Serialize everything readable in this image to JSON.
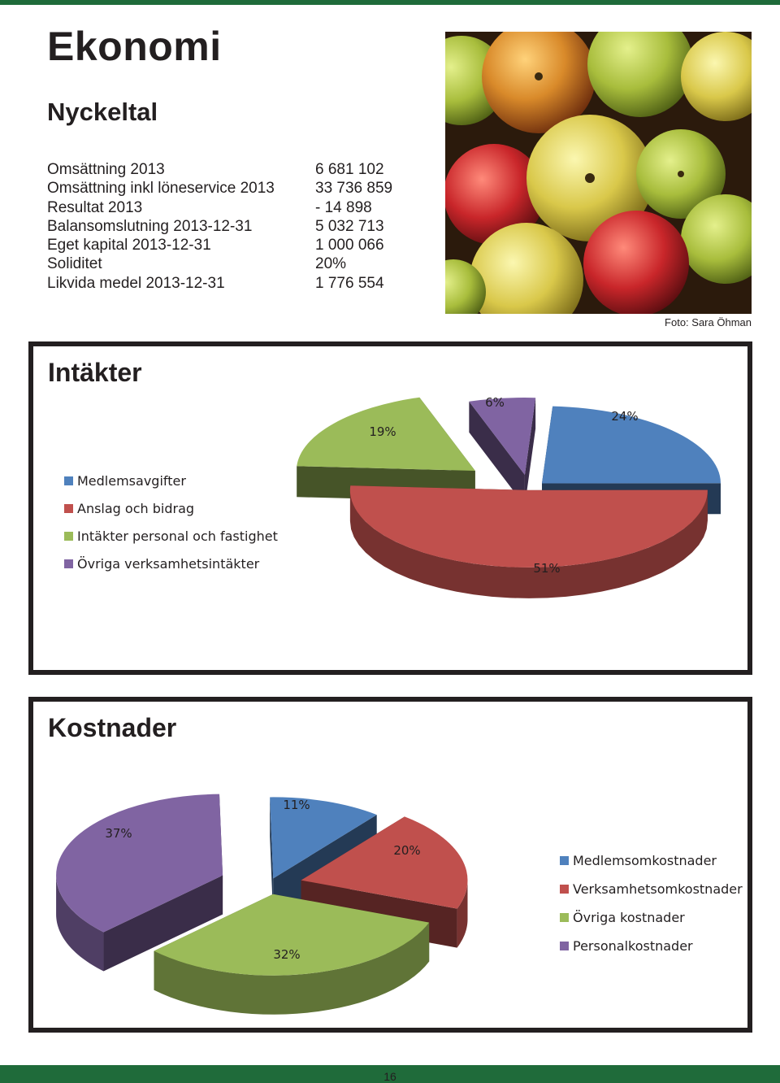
{
  "page": {
    "title": "Ekonomi",
    "subtitle": "Nyckeltal",
    "page_number": "16"
  },
  "photo": {
    "credit": "Foto: Sara Öhman",
    "subject": "apples"
  },
  "key_figures": [
    {
      "label": "Omsättning 2013",
      "value": "6 681 102"
    },
    {
      "label": "Omsättning inkl löneservice 2013",
      "value": "33 736 859"
    },
    {
      "label": "Resultat 2013",
      "value": "- 14 898"
    },
    {
      "label": "Balansomslutning 2013-12-31",
      "value": "5 032 713"
    },
    {
      "label": "Eget kapital 2013-12-31",
      "value": "1 000 066"
    },
    {
      "label": "Soliditet",
      "value": "20%"
    },
    {
      "label": "Likvida medel 2013-12-31",
      "value": "1 776 554"
    }
  ],
  "colors": {
    "brand_green": "#1f6b3a",
    "blue": "#4f81bd",
    "red": "#c0504d",
    "green": "#9bbb59",
    "purple": "#8064a2"
  },
  "chart_data": [
    {
      "type": "pie",
      "title": "Intäkter",
      "categories": [
        "Medlemsavgifter",
        "Anslag och bidrag",
        "Intäkter personal och fastighet",
        "Övriga verksamhetsintäkter"
      ],
      "values": [
        24,
        51,
        19,
        6
      ],
      "labels": [
        "24%",
        "51%",
        "19%",
        "6%"
      ],
      "colors": [
        "#4f81bd",
        "#c0504d",
        "#9bbb59",
        "#8064a2"
      ],
      "legend_position": "left"
    },
    {
      "type": "pie",
      "title": "Kostnader",
      "categories": [
        "Medlemsomkostnader",
        "Verksamhetsomkostnader",
        "Övriga kostnader",
        "Personalkostnader"
      ],
      "values": [
        11,
        20,
        32,
        37
      ],
      "labels": [
        "11%",
        "20%",
        "32%",
        "37%"
      ],
      "colors": [
        "#4f81bd",
        "#c0504d",
        "#9bbb59",
        "#8064a2"
      ],
      "legend_position": "right"
    }
  ]
}
